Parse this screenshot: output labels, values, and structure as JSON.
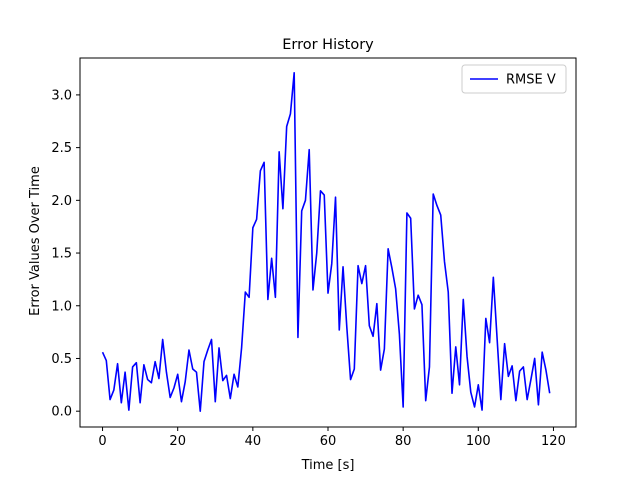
{
  "chart_data": {
    "type": "line",
    "title": "Error History",
    "xlabel": "Time [s]",
    "ylabel": "Error Values Over Time",
    "xlim": [
      -6,
      126
    ],
    "ylim": [
      -0.15,
      3.35
    ],
    "xticks": [
      0,
      20,
      40,
      60,
      80,
      100,
      120
    ],
    "yticks": [
      0.0,
      0.5,
      1.0,
      1.5,
      2.0,
      2.5,
      3.0
    ],
    "xtick_labels": [
      "0",
      "20",
      "40",
      "60",
      "80",
      "100",
      "120"
    ],
    "ytick_labels": [
      "0.0",
      "0.5",
      "1.0",
      "1.5",
      "2.0",
      "2.5",
      "3.0"
    ],
    "grid": false,
    "legend": "top-right",
    "series": [
      {
        "name": "RMSE V",
        "color": "#0000ff",
        "x": [
          0,
          1,
          2,
          3,
          4,
          5,
          6,
          7,
          8,
          9,
          10,
          11,
          12,
          13,
          14,
          15,
          16,
          17,
          18,
          19,
          20,
          21,
          22,
          23,
          24,
          25,
          26,
          27,
          28,
          29,
          30,
          31,
          32,
          33,
          34,
          35,
          36,
          37,
          38,
          39,
          40,
          41,
          42,
          43,
          44,
          45,
          46,
          47,
          48,
          49,
          50,
          51,
          52,
          53,
          54,
          55,
          56,
          57,
          58,
          59,
          60,
          61,
          62,
          63,
          64,
          65,
          66,
          67,
          68,
          69,
          70,
          71,
          72,
          73,
          74,
          75,
          76,
          77,
          78,
          79,
          80,
          81,
          82,
          83,
          84,
          85,
          86,
          87,
          88,
          89,
          90,
          91,
          92,
          93,
          94,
          95,
          96,
          97,
          98,
          99,
          100,
          101,
          102,
          103,
          104,
          105,
          106,
          107,
          108,
          109,
          110,
          111,
          112,
          113,
          114,
          115,
          116,
          117,
          118,
          119
        ],
        "values": [
          0.56,
          0.48,
          0.11,
          0.2,
          0.45,
          0.08,
          0.37,
          0.01,
          0.42,
          0.46,
          0.08,
          0.44,
          0.3,
          0.27,
          0.47,
          0.31,
          0.68,
          0.37,
          0.13,
          0.22,
          0.35,
          0.09,
          0.28,
          0.58,
          0.4,
          0.37,
          0.0,
          0.47,
          0.58,
          0.68,
          0.09,
          0.6,
          0.29,
          0.34,
          0.12,
          0.35,
          0.23,
          0.6,
          1.13,
          1.08,
          1.74,
          1.82,
          2.28,
          2.36,
          1.06,
          1.45,
          1.08,
          2.46,
          1.92,
          2.7,
          2.82,
          3.21,
          0.7,
          1.9,
          2.0,
          2.48,
          1.15,
          1.5,
          2.09,
          2.05,
          1.12,
          1.4,
          2.03,
          0.77,
          1.37,
          0.8,
          0.3,
          0.4,
          1.38,
          1.21,
          1.38,
          0.81,
          0.71,
          1.02,
          0.39,
          0.59,
          1.54,
          1.36,
          1.16,
          0.73,
          0.04,
          1.88,
          1.83,
          0.97,
          1.1,
          1.01,
          0.1,
          0.42,
          2.06,
          1.95,
          1.86,
          1.42,
          1.13,
          0.17,
          0.61,
          0.25,
          1.06,
          0.52,
          0.18,
          0.04,
          0.25,
          0.01,
          0.88,
          0.65,
          1.27,
          0.69,
          0.11,
          0.64,
          0.33,
          0.43,
          0.1,
          0.38,
          0.42,
          0.11,
          0.3,
          0.5,
          0.06,
          0.56,
          0.39,
          0.17
        ]
      }
    ]
  }
}
